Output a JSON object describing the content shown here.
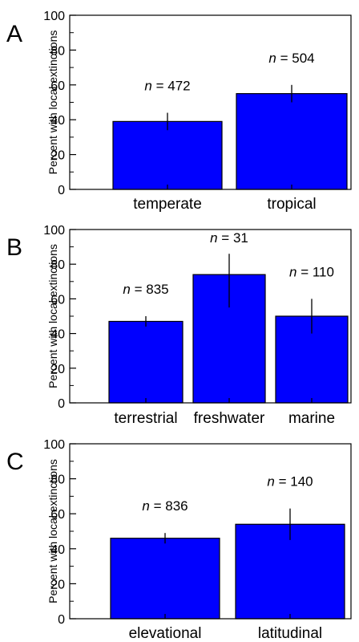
{
  "colors": {
    "bar": "#0000ff",
    "axis": "#000000",
    "error": "#000000"
  },
  "chart_data": [
    {
      "type": "bar",
      "panel": "A",
      "ylabel": "Percent with local extinctions",
      "ylim": [
        0,
        100
      ],
      "yticks": [
        0,
        20,
        40,
        60,
        80,
        100
      ],
      "categories": [
        "temperate",
        "tropical"
      ],
      "values": [
        39,
        55
      ],
      "error_low": [
        34,
        50
      ],
      "error_high": [
        44,
        60
      ],
      "n_labels": [
        "472",
        "504"
      ],
      "grid": false
    },
    {
      "type": "bar",
      "panel": "B",
      "ylabel": "Percent with local extinctions",
      "ylim": [
        0,
        100
      ],
      "yticks": [
        0,
        20,
        40,
        60,
        80,
        100
      ],
      "categories": [
        "terrestrial",
        "freshwater",
        "marine"
      ],
      "values": [
        47,
        74,
        50
      ],
      "error_low": [
        44,
        55,
        40
      ],
      "error_high": [
        50,
        86,
        60
      ],
      "n_labels": [
        "835",
        "31",
        "110"
      ],
      "grid": false
    },
    {
      "type": "bar",
      "panel": "C",
      "ylabel": "Percent with local extinctions",
      "ylim": [
        0,
        100
      ],
      "yticks": [
        0,
        20,
        40,
        60,
        80,
        100
      ],
      "categories": [
        "elevational",
        "latitudinal"
      ],
      "values": [
        46,
        54
      ],
      "error_low": [
        43,
        45
      ],
      "error_high": [
        49,
        63
      ],
      "n_labels": [
        "836",
        "140"
      ],
      "grid": false
    }
  ]
}
